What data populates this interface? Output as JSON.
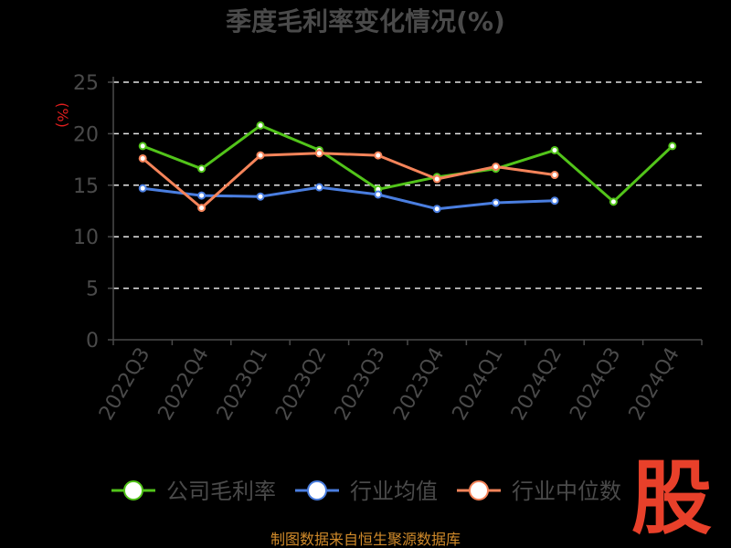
{
  "chart_data": {
    "type": "line",
    "title": "季度毛利率变化情况(%)",
    "ylabel": "(%)",
    "xlabel": "",
    "ylim": [
      0,
      25
    ],
    "yticks": [
      0,
      5,
      10,
      15,
      20,
      25
    ],
    "grid": true,
    "legend_position": "bottom",
    "categories": [
      "2022Q3",
      "2022Q4",
      "2023Q1",
      "2023Q2",
      "2023Q3",
      "2023Q4",
      "2024Q1",
      "2024Q2",
      "2024Q3",
      "2024Q4"
    ],
    "series": [
      {
        "name": "公司毛利率",
        "color": "#52c41a",
        "values": [
          18.8,
          16.6,
          20.8,
          18.4,
          14.6,
          15.8,
          16.6,
          18.4,
          13.4,
          18.8
        ]
      },
      {
        "name": "行业均值",
        "color": "#4a7ee0",
        "values": [
          14.7,
          14.0,
          13.9,
          14.8,
          14.1,
          12.7,
          13.3,
          13.5,
          null,
          null
        ]
      },
      {
        "name": "行业中位数",
        "color": "#f5845a",
        "values": [
          17.6,
          12.8,
          17.9,
          18.1,
          17.9,
          15.6,
          16.8,
          16.0,
          null,
          null
        ]
      }
    ]
  },
  "source_text": "制图数据来自恒生聚源数据库",
  "logo_text": "股"
}
